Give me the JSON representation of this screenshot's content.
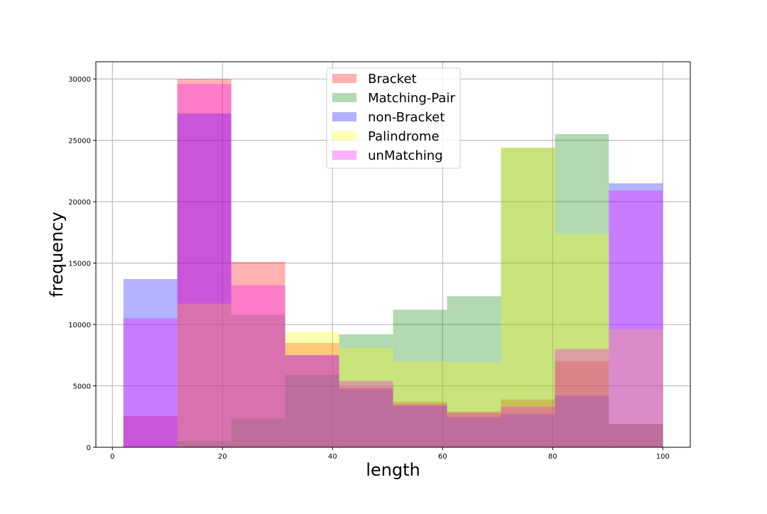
{
  "chart_data": {
    "type": "bar",
    "subtype": "overlapping-histogram",
    "title": "",
    "xlabel": "length",
    "ylabel": "frequency",
    "xlim": [
      -3,
      105
    ],
    "ylim": [
      0,
      31400
    ],
    "grid": true,
    "legend_position": "top-center",
    "bin_edges": [
      2,
      11.8,
      21.6,
      31.4,
      41.2,
      51,
      60.8,
      70.6,
      80.4,
      90.2,
      100
    ],
    "x_ticks": [
      0,
      20,
      40,
      60,
      80,
      100
    ],
    "y_ticks": [
      0,
      5000,
      10000,
      15000,
      20000,
      25000,
      30000
    ],
    "series": [
      {
        "name": "Bracket",
        "color": "#ff0000",
        "values": [
          2550,
          30000,
          15100,
          8500,
          4900,
          3700,
          2900,
          3900,
          7000,
          1900
        ]
      },
      {
        "name": "Matching-Pair",
        "color": "#008000",
        "values": [
          0,
          500,
          2350,
          5900,
          9200,
          11200,
          12300,
          24400,
          25500,
          1900
        ]
      },
      {
        "name": "non-Bracket",
        "color": "#0000ff",
        "values": [
          13700,
          27200,
          10800,
          7500,
          4750,
          3350,
          2450,
          2700,
          4200,
          21500
        ]
      },
      {
        "name": "Palindrome",
        "color": "#ffff00",
        "values": [
          0,
          11700,
          10800,
          9400,
          8100,
          7000,
          6900,
          24400,
          17400,
          9600
        ]
      },
      {
        "name": "unMatching",
        "color": "#ff00ff",
        "values": [
          10500,
          29600,
          13200,
          7500,
          5400,
          3500,
          2800,
          3300,
          8000,
          20900
        ]
      }
    ]
  }
}
